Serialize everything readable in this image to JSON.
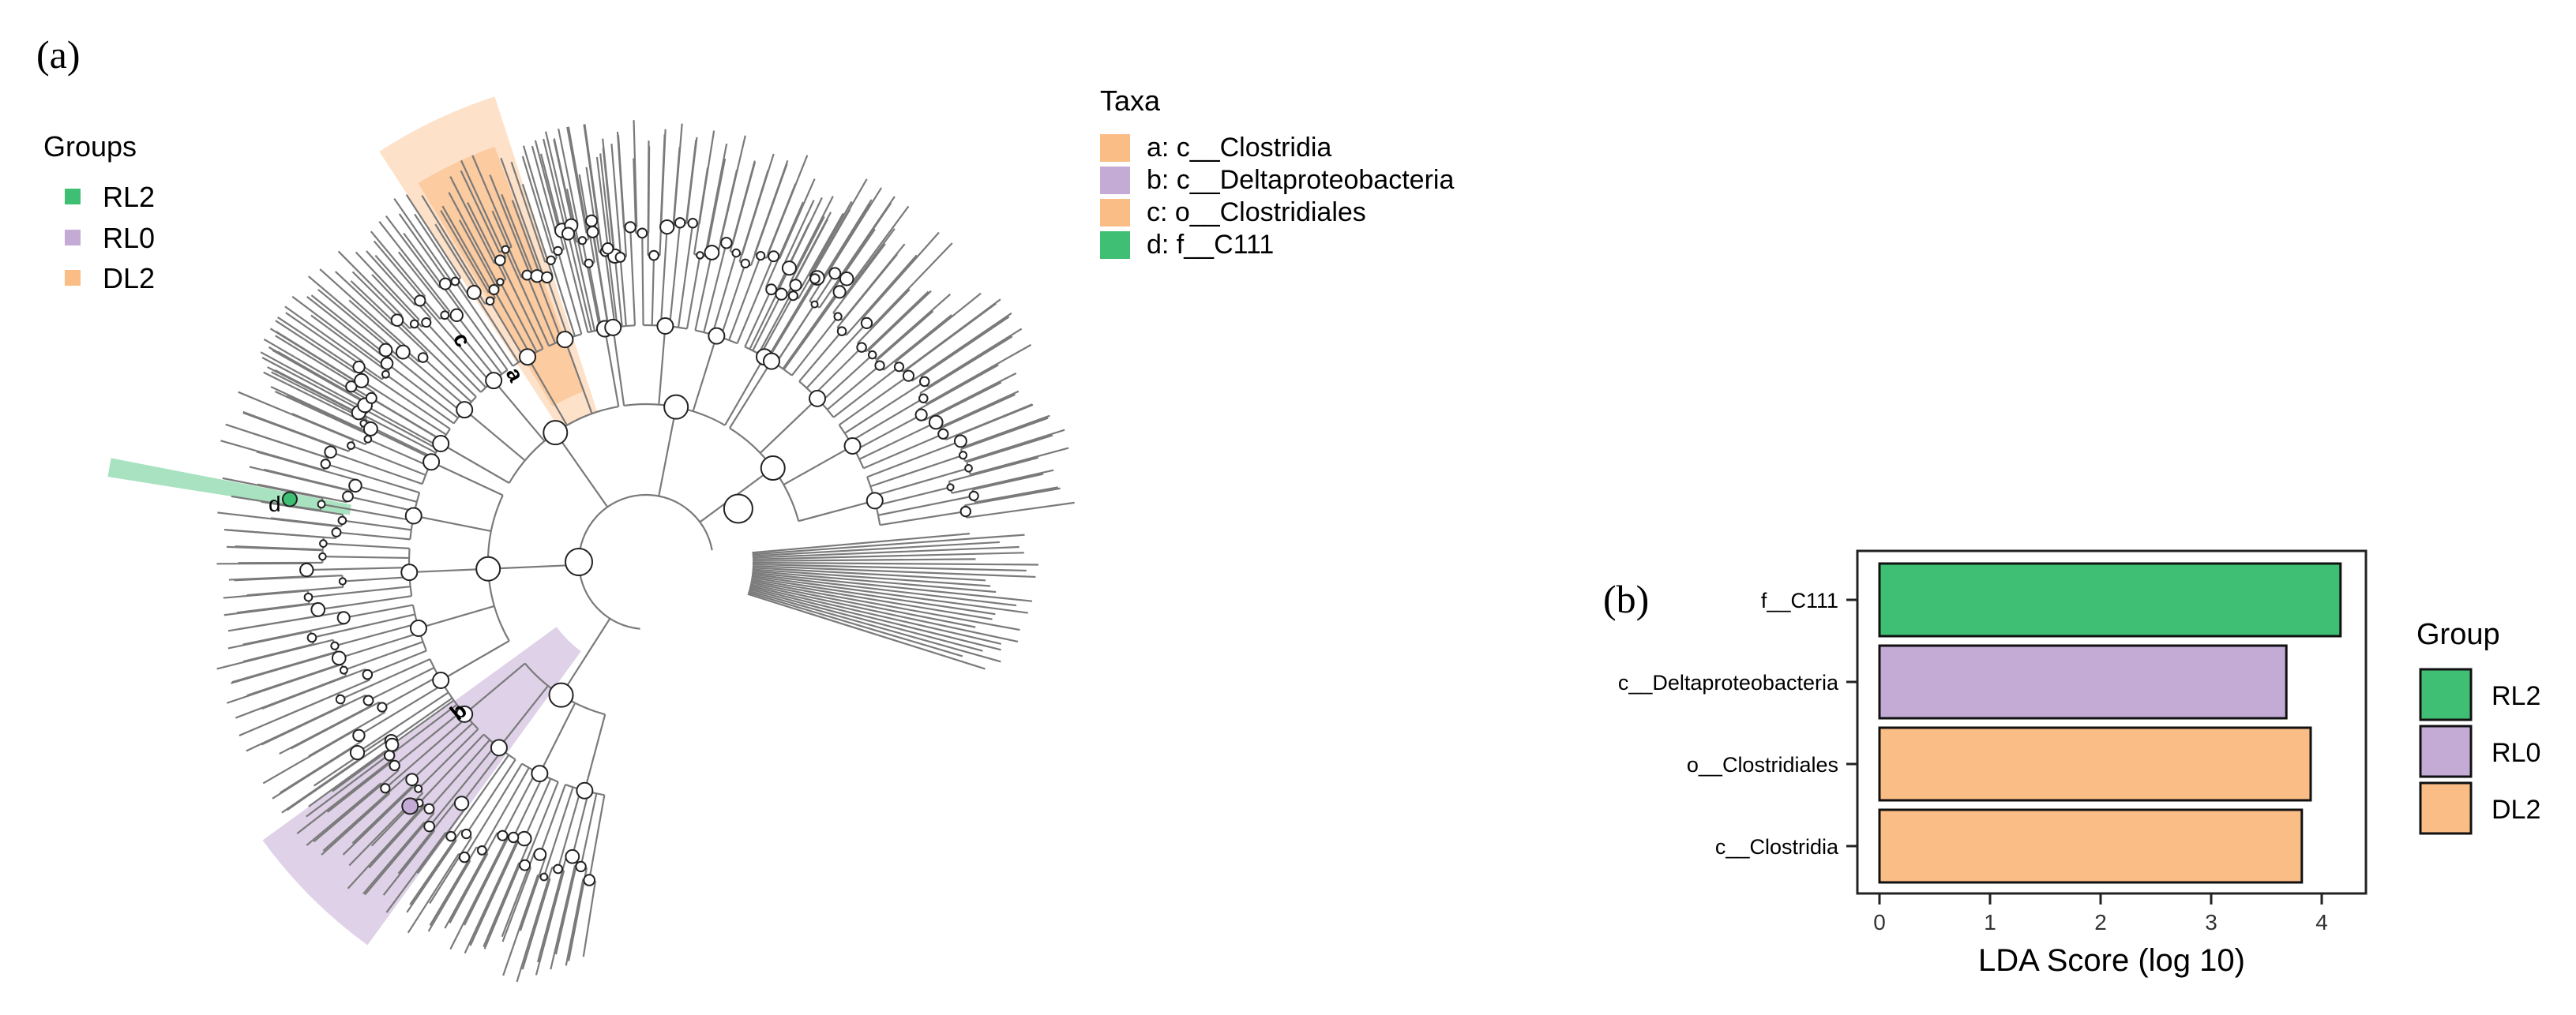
{
  "panel_a": {
    "label": "(a)",
    "groups_legend": {
      "title": "Groups",
      "items": [
        {
          "name": "RL2",
          "color": "#3fbf73"
        },
        {
          "name": "RL0",
          "color": "#c3abd6"
        },
        {
          "name": "DL2",
          "color": "#fbbd86"
        }
      ]
    },
    "taxa_legend": {
      "title": "Taxa",
      "items": [
        {
          "key": "a",
          "label": "a: c__Clostridia",
          "color": "#fbbd86"
        },
        {
          "key": "b",
          "label": "b: c__Deltaproteobacteria",
          "color": "#c3abd6"
        },
        {
          "key": "c",
          "label": "c: o__Clostridiales",
          "color": "#fbbd86"
        },
        {
          "key": "d",
          "label": "d: f__C111",
          "color": "#3fbf73"
        }
      ]
    },
    "clade_labels": [
      "a",
      "b",
      "c",
      "d"
    ]
  },
  "chart_data": {
    "type": "bar",
    "orientation": "horizontal",
    "label": "(b)",
    "categories": [
      "f__C111",
      "c__Deltaproteobacteria",
      "o__Clostridiales",
      "c__Clostridia"
    ],
    "values": [
      4.17,
      3.68,
      3.9,
      3.82
    ],
    "groups": [
      "RL2",
      "RL0",
      "DL2",
      "DL2"
    ],
    "xlabel": "LDA Score (log 10)",
    "xlim": [
      -0.2,
      4.4
    ],
    "xticks": [
      0,
      1,
      2,
      3,
      4
    ],
    "legend": {
      "title": "Group",
      "position": "right",
      "items": [
        {
          "name": "RL2",
          "color": "#3fbf73"
        },
        {
          "name": "RL0",
          "color": "#c3abd6"
        },
        {
          "name": "DL2",
          "color": "#fbbd86"
        }
      ]
    }
  }
}
